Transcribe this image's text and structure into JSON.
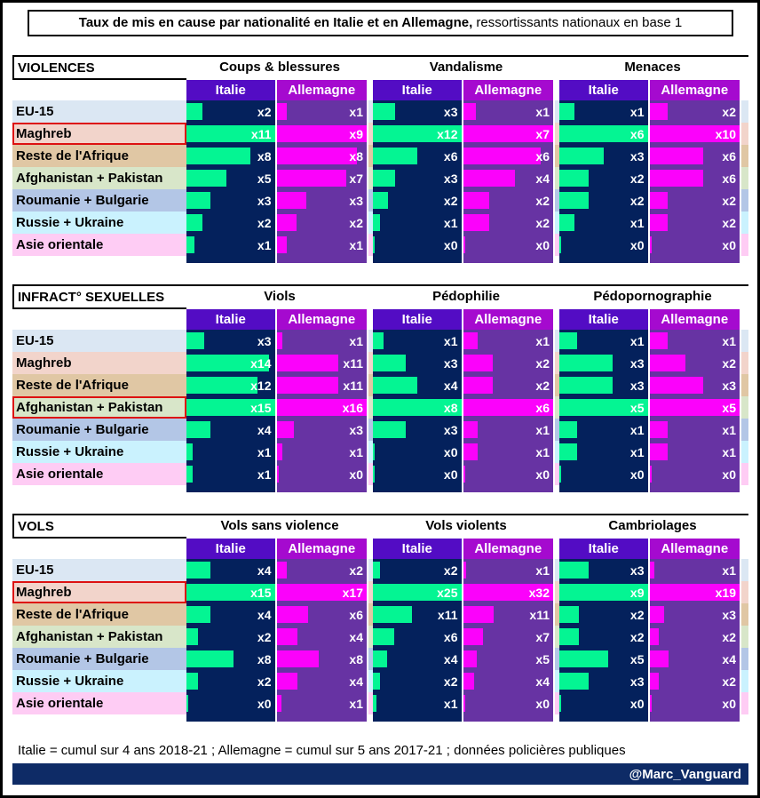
{
  "title": {
    "bold": "Taux de mis en cause par nationalité en Italie et en Allemagne,",
    "regular": " ressortissants nationaux en base 1"
  },
  "footer": {
    "note": "Italie = cumul sur 4 ans 2018-21 ; Allemagne = cumul sur 5 ans 2017-21 ; données policières publiques",
    "credit": "@Marc_Vanguard"
  },
  "chart_data": {
    "type": "bar",
    "orientation": "horizontal",
    "value_prefix": "x",
    "unit": "multiple of the national (base 1) suspect rate",
    "columns": {
      "italy": "Italie",
      "germany": "Allemagne"
    },
    "categories": [
      "EU-15",
      "Maghreb",
      "Reste de l'Afrique",
      "Afghanistan + Pakistan",
      "Roumanie + Bulgarie",
      "Russie + Ukraine",
      "Asie orientale"
    ],
    "row_colors": [
      "#DBE7F3",
      "#F2D4CB",
      "#E0C7A4",
      "#D8E6C9",
      "#B3C6E6",
      "#CAF2FE",
      "#FECCF4"
    ],
    "sections": [
      {
        "label": "VIOLENCES",
        "highlight_row": 1,
        "charts": [
          {
            "title": "Coups & blessures",
            "italie": [
              2,
              11,
              8,
              5,
              3,
              2,
              1
            ],
            "allemagne": [
              1,
              9,
              8,
              7,
              3,
              2,
              1
            ]
          },
          {
            "title": "Vandalisme",
            "italie": [
              3,
              12,
              6,
              3,
              2,
              1,
              0
            ],
            "allemagne": [
              1,
              7,
              6,
              4,
              2,
              2,
              0
            ]
          },
          {
            "title": "Menaces",
            "italie": [
              1,
              6,
              3,
              2,
              2,
              1,
              0
            ],
            "allemagne": [
              2,
              10,
              6,
              6,
              2,
              2,
              0
            ]
          }
        ]
      },
      {
        "label": "INFRACT° SEXUELLES",
        "highlight_row": 3,
        "charts": [
          {
            "title": "Viols",
            "italie": [
              3,
              14,
              12,
              15,
              4,
              1,
              1
            ],
            "allemagne": [
              1,
              11,
              11,
              16,
              3,
              1,
              0
            ]
          },
          {
            "title": "Pédophilie",
            "italie": [
              1,
              3,
              4,
              8,
              3,
              0,
              0
            ],
            "allemagne": [
              1,
              2,
              2,
              6,
              1,
              1,
              0
            ]
          },
          {
            "title": "Pédopornographie",
            "italie": [
              1,
              3,
              3,
              5,
              1,
              1,
              0
            ],
            "allemagne": [
              1,
              2,
              3,
              5,
              1,
              1,
              0
            ]
          }
        ]
      },
      {
        "label": "VOLS",
        "highlight_row": 1,
        "charts": [
          {
            "title": "Vols sans violence",
            "italie": [
              4,
              15,
              4,
              2,
              8,
              2,
              0
            ],
            "allemagne": [
              2,
              17,
              6,
              4,
              8,
              4,
              1
            ]
          },
          {
            "title": "Vols violents",
            "italie": [
              2,
              25,
              11,
              6,
              4,
              2,
              1
            ],
            "allemagne": [
              1,
              32,
              11,
              7,
              5,
              4,
              0
            ]
          },
          {
            "title": "Cambriolages",
            "italie": [
              3,
              9,
              2,
              2,
              5,
              3,
              0
            ],
            "allemagne": [
              1,
              19,
              3,
              2,
              4,
              2,
              0
            ]
          }
        ]
      }
    ],
    "colors": {
      "italie_bar": "#04F593",
      "allemagne_bar": "#FB02FB",
      "italie_bg": "#04215C",
      "allemagne_bg": "#6733A3",
      "italie_header_bg": "#530CC4",
      "allemagne_header_bg": "#A50ACF",
      "highlight_border": "#DD1111",
      "credit_band_bg": "#0E2B66"
    }
  }
}
